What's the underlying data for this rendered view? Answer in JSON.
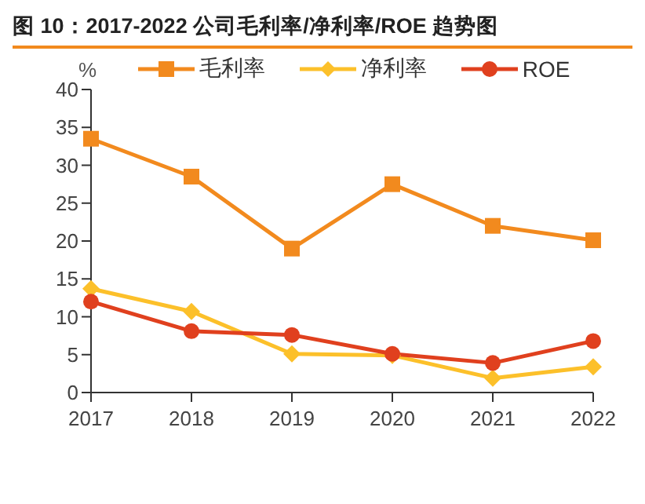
{
  "chart_data": {
    "type": "line",
    "title": "图 10：2017-2022 公司毛利率/净利率/ROE 趋势图",
    "ylabel": "%",
    "categories": [
      "2017",
      "2018",
      "2019",
      "2020",
      "2021",
      "2022"
    ],
    "series": [
      {
        "name": "毛利率",
        "color": "#f28a1e",
        "marker": "square",
        "values": [
          33.5,
          28.5,
          19,
          27.5,
          22,
          20.1
        ]
      },
      {
        "name": "净利率",
        "color": "#fcc02a",
        "marker": "diamond",
        "values": [
          13.7,
          10.7,
          5.1,
          4.9,
          1.9,
          3.4
        ]
      },
      {
        "name": "ROE",
        "color": "#e0401e",
        "marker": "circle",
        "values": [
          12,
          8.1,
          7.6,
          5.1,
          3.9,
          6.8
        ]
      }
    ],
    "ylim": [
      0,
      40
    ],
    "yticks": [
      0,
      5,
      10,
      15,
      20,
      25,
      30,
      35,
      40
    ],
    "grid": false,
    "legend": "top",
    "line_style": "solid"
  }
}
